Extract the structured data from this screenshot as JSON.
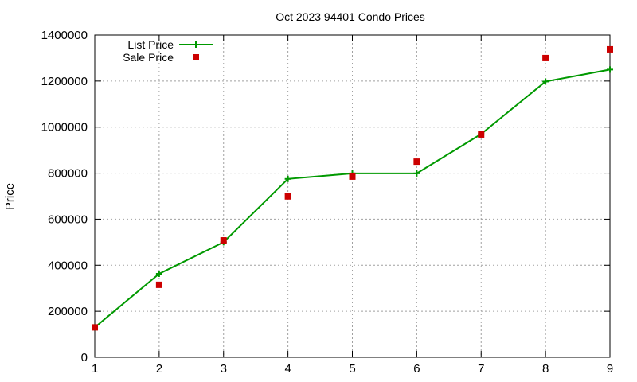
{
  "chart_data": {
    "type": "line",
    "title": "Oct 2023 94401 Condo Prices",
    "xlabel": "",
    "ylabel": "Price",
    "x": [
      1,
      2,
      3,
      4,
      5,
      6,
      7,
      8,
      9
    ],
    "xlim": [
      1,
      9
    ],
    "ylim": [
      0,
      1400000
    ],
    "xticks": [
      "1",
      "2",
      "3",
      "4",
      "5",
      "6",
      "7",
      "8",
      "9"
    ],
    "yticks": [
      "0",
      "200000",
      "400000",
      "600000",
      "800000",
      "1000000",
      "1200000",
      "1400000"
    ],
    "grid": true,
    "legend_position": "top-left",
    "series": [
      {
        "name": "List Price",
        "style": "line+cross",
        "color": "#009900",
        "values": [
          130000,
          363000,
          500000,
          775000,
          799000,
          799000,
          970000,
          1198000,
          1250000
        ]
      },
      {
        "name": "Sale Price",
        "style": "square-points",
        "color": "#cc0000",
        "values": [
          130000,
          315000,
          508000,
          699000,
          785000,
          850000,
          968000,
          1300000,
          1338000
        ]
      }
    ]
  },
  "colors": {
    "grid": "#a0a0a0",
    "axis": "#000000"
  }
}
